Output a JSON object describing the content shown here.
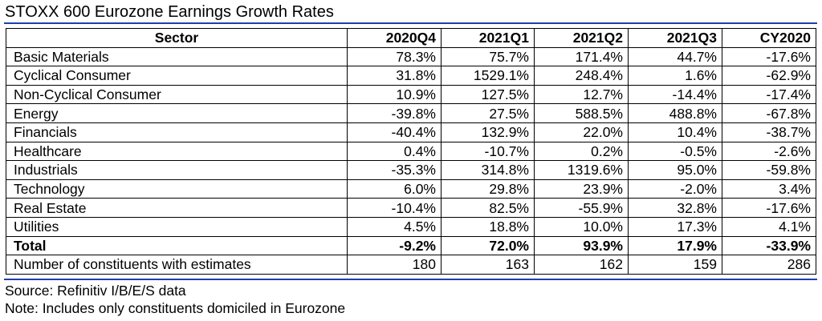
{
  "title": "STOXX 600 Eurozone Earnings Growth Rates",
  "headers": [
    "Sector",
    "2020Q4",
    "2021Q1",
    "2021Q2",
    "2021Q3",
    "CY2020"
  ],
  "rows": [
    {
      "sector": "Basic Materials",
      "values": [
        "78.3%",
        "75.7%",
        "171.4%",
        "44.7%",
        "-17.6%"
      ]
    },
    {
      "sector": "Cyclical Consumer",
      "values": [
        "31.8%",
        "1529.1%",
        "248.4%",
        "1.6%",
        "-62.9%"
      ]
    },
    {
      "sector": "Non-Cyclical Consumer",
      "values": [
        "10.9%",
        "127.5%",
        "12.7%",
        "-14.4%",
        "-17.4%"
      ]
    },
    {
      "sector": "Energy",
      "values": [
        "-39.8%",
        "27.5%",
        "588.5%",
        "488.8%",
        "-67.8%"
      ]
    },
    {
      "sector": "Financials",
      "values": [
        "-40.4%",
        "132.9%",
        "22.0%",
        "10.4%",
        "-38.7%"
      ]
    },
    {
      "sector": "Healthcare",
      "values": [
        "0.4%",
        "-10.7%",
        "0.2%",
        "-0.5%",
        "-2.6%"
      ]
    },
    {
      "sector": "Industrials",
      "values": [
        "-35.3%",
        "314.8%",
        "1319.6%",
        "95.0%",
        "-59.8%"
      ]
    },
    {
      "sector": "Technology",
      "values": [
        "6.0%",
        "29.8%",
        "23.9%",
        "-2.0%",
        "3.4%"
      ]
    },
    {
      "sector": "Real Estate",
      "values": [
        "-10.4%",
        "82.5%",
        "-55.9%",
        "32.8%",
        "-17.6%"
      ]
    },
    {
      "sector": "Utilities",
      "values": [
        "4.5%",
        "18.8%",
        "10.0%",
        "17.3%",
        "4.1%"
      ]
    }
  ],
  "total": {
    "sector": "Total",
    "values": [
      "-9.2%",
      "72.0%",
      "93.9%",
      "17.9%",
      "-33.9%"
    ]
  },
  "constituents": {
    "sector": "Number of constituents with estimates",
    "values": [
      "180",
      "163",
      "162",
      "159",
      "286"
    ]
  },
  "source": "Source: Refinitiv I/B/E/S data",
  "note": "Note: Includes only constituents domiciled in Eurozone",
  "colors": {
    "rule": "#1f3fa8"
  }
}
